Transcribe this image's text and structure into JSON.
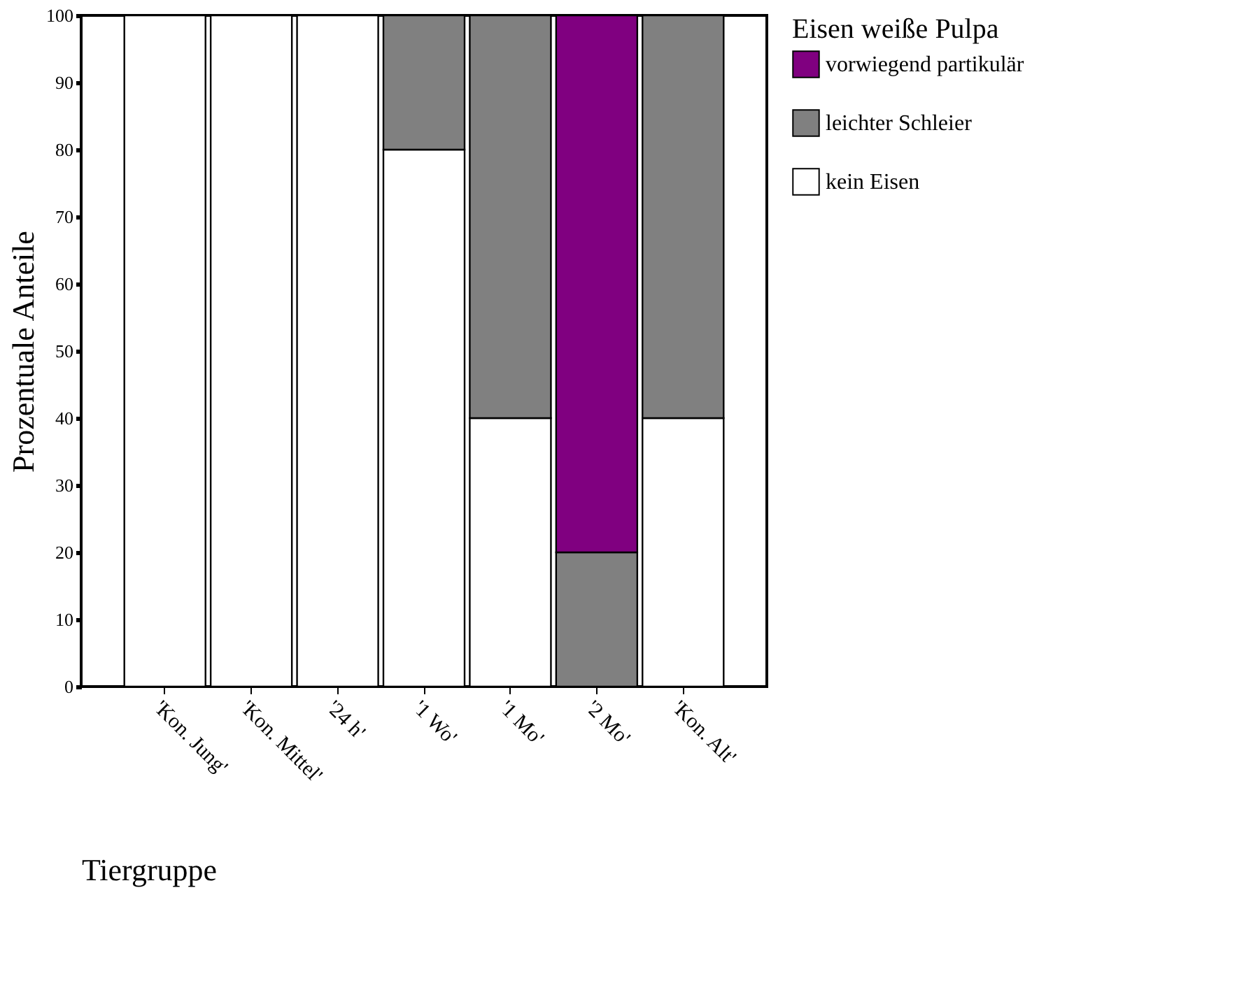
{
  "chart_data": {
    "type": "bar",
    "stacked": true,
    "xlabel": "Tiergruppe",
    "ylabel": "Prozentuale Anteile",
    "legend_title": "Eisen weiße Pulpa",
    "categories": [
      "'Kon. Jung'",
      "'Kon. Mittel'",
      "'24 h'",
      "'1 Wo'",
      "'1 Mo'",
      "'2 Mo'",
      "'Kon. Alt'"
    ],
    "series": [
      {
        "name": "kein Eisen",
        "color": "#ffffff",
        "values": [
          100,
          100,
          100,
          80,
          40,
          0,
          40
        ]
      },
      {
        "name": "leichter Schleier",
        "color": "#808080",
        "values": [
          0,
          0,
          0,
          20,
          60,
          20,
          60
        ]
      },
      {
        "name": "vorwiegend partikulär",
        "color": "#800080",
        "values": [
          0,
          0,
          0,
          0,
          0,
          80,
          0
        ]
      }
    ],
    "ylim": [
      0,
      100
    ],
    "yticks": [
      0,
      10,
      20,
      30,
      40,
      50,
      60,
      70,
      80,
      90,
      100
    ],
    "grid": false,
    "legend": "right"
  }
}
